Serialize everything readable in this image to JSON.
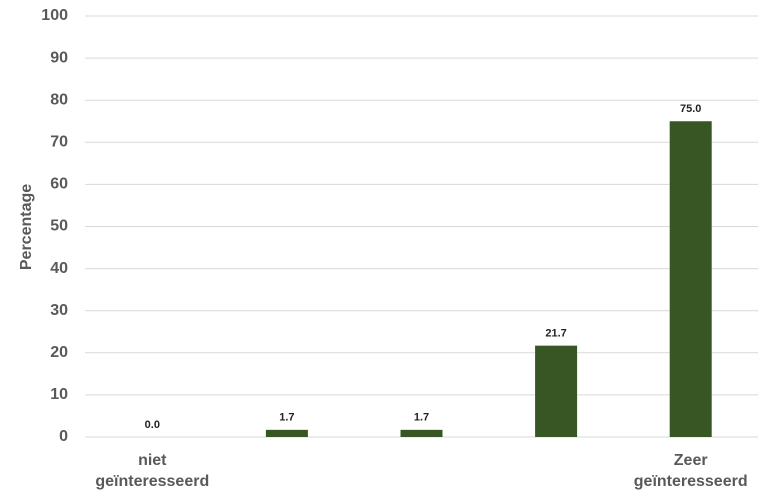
{
  "chart_data": {
    "type": "bar",
    "y_label": "Percentage",
    "categories": [
      "niet geïnteresseerd",
      null,
      null,
      null,
      "Zeer geïnteresseerd"
    ],
    "values": [
      0,
      1.7,
      1.7,
      21.7,
      75
    ],
    "value_labels": [
      "0.0",
      "1.7",
      "1.7",
      "21.7",
      "75.0"
    ],
    "color": "#375623",
    "ylim": [
      0,
      100
    ],
    "yticks": [
      0,
      10,
      20,
      30,
      40,
      50,
      60,
      70,
      80,
      90,
      100
    ],
    "grid": true
  }
}
